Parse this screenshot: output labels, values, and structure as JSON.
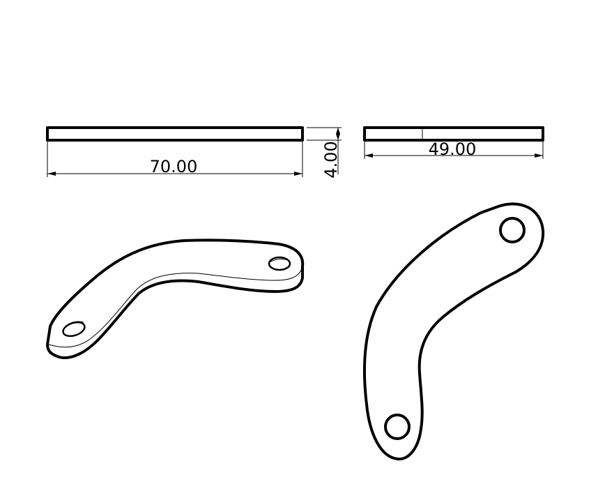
{
  "drawing": {
    "dimensions": {
      "front_length": "70.00",
      "front_thickness": "4.00",
      "side_length": "49.00"
    },
    "views": [
      "front-view",
      "side-view",
      "isometric-view",
      "top-view"
    ],
    "line_color": "#000000",
    "background_color": "#ffffff"
  }
}
